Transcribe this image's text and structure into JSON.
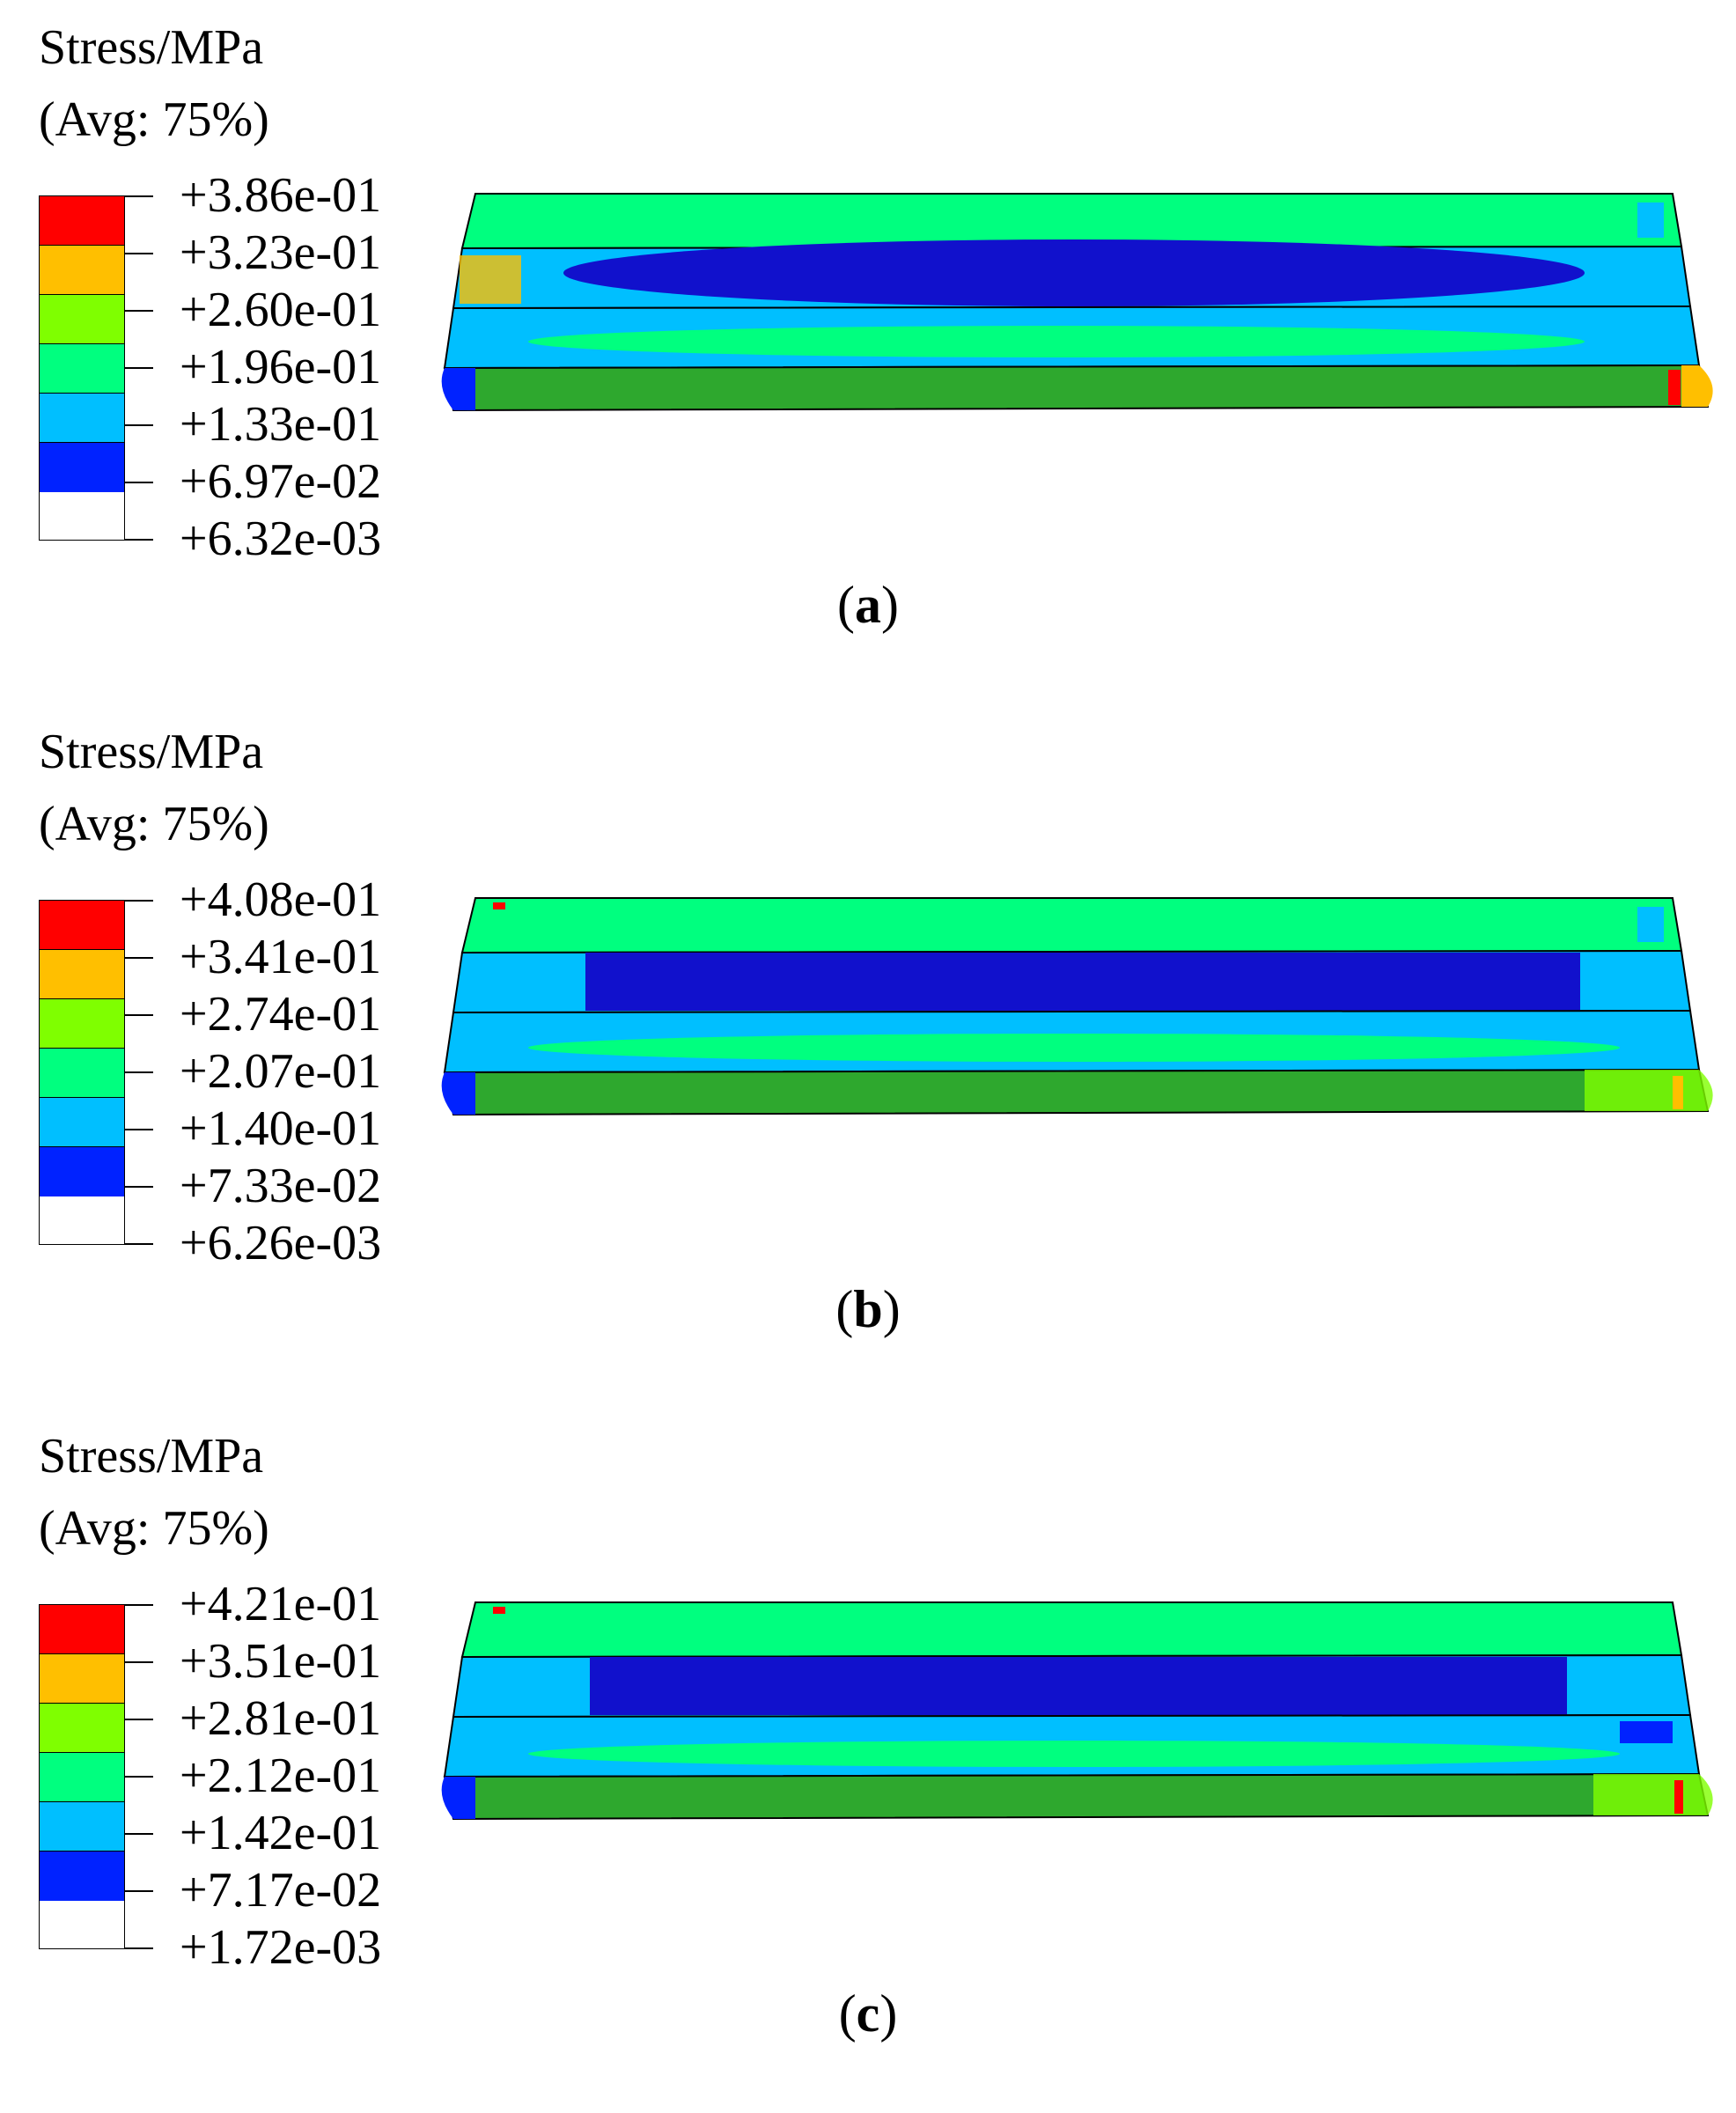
{
  "colors": {
    "red": "#ff0000",
    "orange": "#ffbf00",
    "yellow_green": "#7fff00",
    "green": "#00ff7f",
    "cyan": "#00bfff",
    "blue": "#0022ff",
    "deep_blue": "#1111cc",
    "dark_green": "#2ea82e"
  },
  "panels": [
    {
      "legend_title_1": "Stress/MPa",
      "legend_title_2": "(Avg: 75%)",
      "ticks": [
        "+3.86e-01",
        "+3.23e-01",
        "+2.60e-01",
        "+1.96e-01",
        "+1.33e-01",
        "+6.97e-02",
        "+6.32e-03"
      ],
      "caption_open": "(",
      "caption_letter": "a",
      "caption_close": ")"
    },
    {
      "legend_title_1": "Stress/MPa",
      "legend_title_2": "(Avg: 75%)",
      "ticks": [
        "+4.08e-01",
        "+3.41e-01",
        "+2.74e-01",
        "+2.07e-01",
        "+1.40e-01",
        "+7.33e-02",
        "+6.26e-03"
      ],
      "caption_open": "(",
      "caption_letter": "b",
      "caption_close": ")"
    },
    {
      "legend_title_1": "Stress/MPa",
      "legend_title_2": "(Avg: 75%)",
      "ticks": [
        "+4.21e-01",
        "+3.51e-01",
        "+2.81e-01",
        "+2.12e-01",
        "+1.42e-01",
        "+7.17e-02",
        "+1.72e-03"
      ],
      "caption_open": "(",
      "caption_letter": "c",
      "caption_close": ")"
    }
  ]
}
